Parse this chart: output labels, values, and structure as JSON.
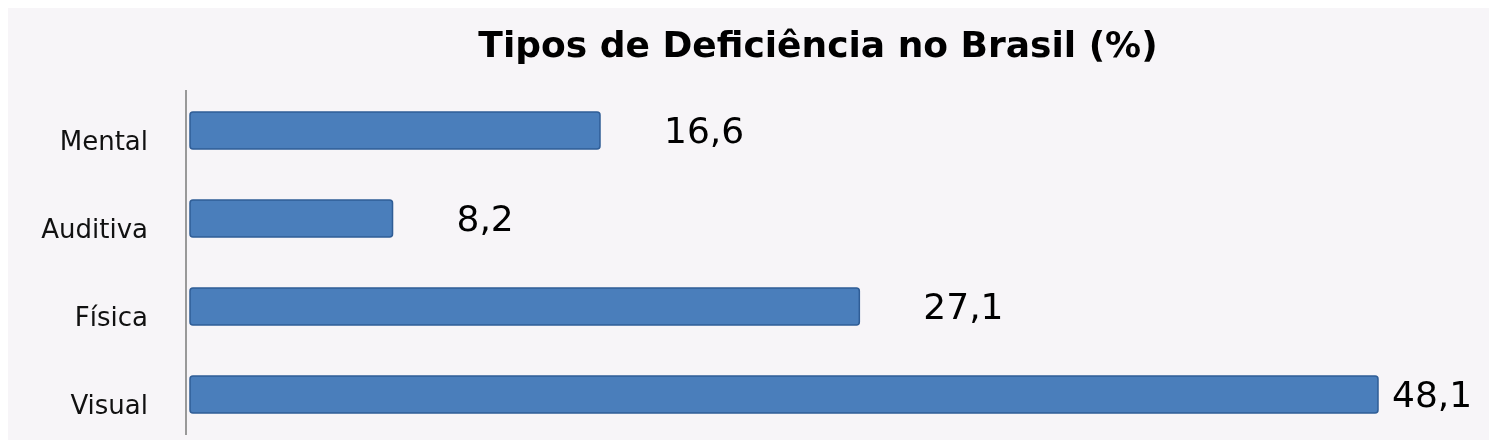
{
  "chart_data": {
    "type": "bar",
    "orientation": "horizontal",
    "title": "Tipos de Deficiência no Brasil (%)",
    "categories": [
      "Mental",
      "Auditiva",
      "Física",
      "Visual"
    ],
    "values": [
      16.6,
      8.2,
      27.1,
      48.1
    ],
    "value_labels": [
      "16,6",
      "8,2",
      "27,1",
      "48,1"
    ],
    "color": "#4a7ebb"
  }
}
